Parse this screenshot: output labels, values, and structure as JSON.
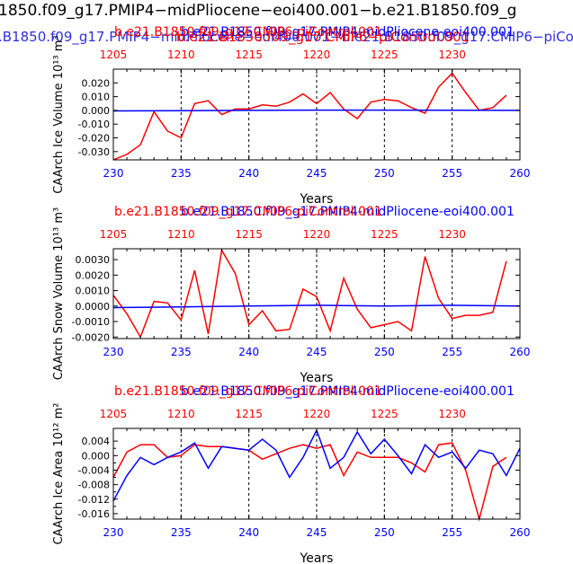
{
  "header": {
    "line1": "1850.f09_g17.PMIP4−midPliocene−eoi400.001−b.e21.B1850.f09_g",
    "line2": ".B1850.f09_g17.PMIP4−midPliocene−eoi400.001−b.e21.B1850.f09_g17.CMIP6−piCont",
    "line2_overlap": "b.e21.B1850.f09_g17.CMIP6−piControl.001",
    "line1_color": "#000000",
    "line2_color": "#2f2fe0",
    "line2_overlap_color": "#ff0000"
  },
  "colors": {
    "red": "#ff0000",
    "blue": "#0000ff",
    "axis": "#000000"
  },
  "chart_data": [
    {
      "type": "line",
      "title_red": "b.e21.B1850.f09_g17.CMIP6-piControl.001",
      "title_blue": "b.e21.B1850.f09_g17.PMIP4-midPliocene-eoi400.001",
      "ylabel": "CAArch Ice Volume 10¹³ m³",
      "xlabel": "Years",
      "xlim": [
        230,
        260
      ],
      "ylim": [
        -0.036,
        0.03
      ],
      "bottom_ticks": [
        230,
        235,
        240,
        245,
        250,
        255,
        260
      ],
      "top_ticks": [
        1205,
        1210,
        1215,
        1220,
        1225,
        1230
      ],
      "top_offset": 975,
      "yticks": [
        0.02,
        0.01,
        0.0,
        -0.01,
        -0.02,
        -0.03
      ],
      "ytick_labels": [
        "0.020",
        "0.010",
        "0.000",
        "-0.010",
        "-0.020",
        "-0.030"
      ],
      "dashed_x": [
        235,
        240,
        245,
        250,
        255
      ],
      "series": [
        {
          "color": "red",
          "x": [
            230,
            231,
            232,
            233,
            234,
            235,
            236,
            237,
            238,
            239,
            240,
            241,
            242,
            243,
            244,
            245,
            246,
            247,
            248,
            249,
            250,
            251,
            252,
            253,
            254,
            255,
            256,
            257,
            258,
            259
          ],
          "values": [
            -0.036,
            -0.032,
            -0.025,
            -0.001,
            -0.015,
            -0.02,
            0.005,
            0.007,
            -0.003,
            0.001,
            0.001,
            0.004,
            0.003,
            0.006,
            0.012,
            0.005,
            0.013,
            0.001,
            -0.006,
            0.006,
            0.008,
            0.007,
            0.002,
            -0.002,
            0.017,
            0.027,
            0.013,
            0.0,
            0.002,
            0.011
          ]
        },
        {
          "color": "blue",
          "x": [
            230,
            235,
            240,
            245,
            250,
            255,
            260
          ],
          "values": [
            -0.0004,
            -0.0002,
            0.0,
            0.0002,
            0.0002,
            0.0001,
            0.0
          ]
        }
      ]
    },
    {
      "type": "line",
      "title_red": "b.e21.B1850.f09_g17.CMIP6-piControl.001",
      "title_blue": "b.e21.B1850.f09_g17.PMIP4-midPliocene-eoi400.001",
      "ylabel": "CAArch Snow Volume 10¹³ m³",
      "xlabel": "Years",
      "xlim": [
        230,
        260
      ],
      "ylim": [
        -0.0021,
        0.0037
      ],
      "bottom_ticks": [
        230,
        235,
        240,
        245,
        250,
        255,
        260
      ],
      "top_ticks": [
        1205,
        1210,
        1215,
        1220,
        1225,
        1230
      ],
      "top_offset": 975,
      "yticks": [
        0.003,
        0.002,
        0.001,
        0.0,
        -0.001,
        -0.002
      ],
      "ytick_labels": [
        "0.0030",
        "0.0020",
        "0.0010",
        "0.0000",
        "-0.0010",
        "-0.0020"
      ],
      "dashed_x": [
        235,
        240,
        245,
        250,
        255
      ],
      "series": [
        {
          "color": "red",
          "x": [
            230,
            231,
            232,
            233,
            234,
            235,
            236,
            237,
            238,
            239,
            240,
            241,
            242,
            243,
            244,
            245,
            246,
            247,
            248,
            249,
            250,
            251,
            252,
            253,
            254,
            255,
            256,
            257,
            258,
            259
          ],
          "values": [
            0.0007,
            -0.0005,
            -0.002,
            0.0003,
            0.0002,
            -0.0009,
            0.0023,
            -0.0018,
            0.0036,
            0.0021,
            -0.0012,
            -0.0003,
            -0.0016,
            -0.0015,
            0.0011,
            0.0006,
            -0.0016,
            0.0018,
            -0.0002,
            -0.0014,
            -0.0012,
            -0.001,
            -0.0016,
            0.0032,
            0.0005,
            -0.0008,
            -0.0006,
            -0.0006,
            -0.0004,
            0.0029
          ]
        },
        {
          "color": "blue",
          "x": [
            230,
            235,
            240,
            245,
            250,
            255,
            260
          ],
          "values": [
            -0.0001,
            -5e-05,
            0.0,
            5e-05,
            0.0,
            5e-05,
            0.0
          ]
        }
      ]
    },
    {
      "type": "line",
      "title_red": "b.e21.B1850.f09_g17.CMIP6-piControl.001",
      "title_blue": "b.e21.B1850.f09_g17.PMIP4-midPliocene-eoi400.001",
      "ylabel": "CAArch Ice Area 10¹² m²",
      "xlabel": "Years",
      "xlim": [
        230,
        260
      ],
      "ylim": [
        -0.0175,
        0.0075
      ],
      "bottom_ticks": [
        230,
        235,
        240,
        245,
        250,
        255,
        260
      ],
      "top_ticks": [
        1205,
        1210,
        1215,
        1220,
        1225,
        1230
      ],
      "top_offset": 975,
      "yticks": [
        0.004,
        0.0,
        -0.004,
        -0.008,
        -0.012,
        -0.016
      ],
      "ytick_labels": [
        "0.004",
        "0.000",
        "-0.004",
        "-0.008",
        "-0.012",
        "-0.016"
      ],
      "minor_yticks": [
        0.002,
        -0.002,
        -0.006,
        -0.01,
        -0.014
      ],
      "dashed_x": [
        235,
        240,
        245,
        250,
        255
      ],
      "series": [
        {
          "color": "red",
          "x": [
            230,
            231,
            232,
            233,
            234,
            235,
            236,
            237,
            238,
            239,
            240,
            241,
            242,
            243,
            244,
            245,
            246,
            247,
            248,
            249,
            250,
            251,
            252,
            253,
            254,
            255,
            256,
            257,
            258,
            259
          ],
          "values": [
            -0.006,
            0.001,
            0.003,
            0.003,
            -0.0005,
            0.0,
            0.003,
            0.0025,
            0.0025,
            0.002,
            0.0015,
            -0.001,
            0.0005,
            0.002,
            0.003,
            0.002,
            0.003,
            -0.0055,
            0.001,
            -0.0005,
            -0.0005,
            -0.0005,
            -0.002,
            -0.0045,
            0.003,
            0.0035,
            -0.004,
            -0.0175,
            -0.003,
            -0.0005
          ]
        },
        {
          "color": "blue",
          "x": [
            230,
            231,
            232,
            233,
            234,
            235,
            236,
            237,
            238,
            239,
            240,
            241,
            242,
            243,
            244,
            245,
            246,
            247,
            248,
            249,
            250,
            251,
            252,
            253,
            254,
            255,
            256,
            257,
            258,
            259,
            260
          ],
          "values": [
            -0.0125,
            -0.0055,
            -0.0005,
            -0.0025,
            -0.0005,
            0.001,
            0.0035,
            -0.0035,
            0.0025,
            0.002,
            0.0015,
            0.0045,
            0.0015,
            -0.006,
            -0.0005,
            0.007,
            -0.0035,
            -0.0005,
            0.0065,
            0.0005,
            0.0045,
            0.0,
            -0.005,
            0.003,
            -0.0005,
            0.001,
            -0.0035,
            0.0015,
            0.0005,
            -0.0055,
            0.002
          ]
        }
      ]
    }
  ]
}
